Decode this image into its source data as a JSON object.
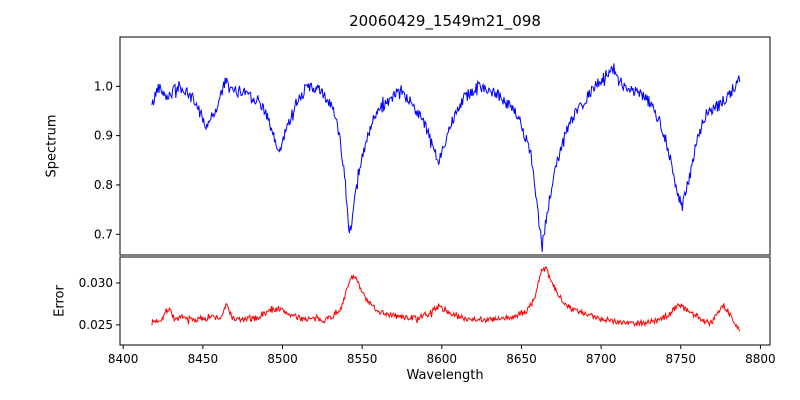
{
  "chart_data": [
    {
      "type": "line",
      "name": "spectrum-panel",
      "title": "20060429_1549m21_098",
      "ylabel": "Spectrum",
      "xlabel": "Wavelength",
      "color": "#0000ff",
      "xlim": [
        8398,
        8806
      ],
      "ylim": [
        0.658,
        1.1
      ],
      "xticks": [
        8400,
        8450,
        8500,
        8550,
        8600,
        8650,
        8700,
        8750,
        8800
      ],
      "yticks": [
        0.7,
        0.8,
        0.9,
        1.0
      ],
      "ytick_labels": [
        "0.7",
        "0.8",
        "0.9",
        "1.0"
      ],
      "grid": false,
      "legend": "none",
      "seed": 42,
      "noise_amp": 0.012,
      "sample_step": 0.5,
      "envelope": {
        "x": [
          8418,
          8422,
          8428,
          8435,
          8445,
          8452,
          8458,
          8464,
          8468,
          8478,
          8488,
          8494,
          8498,
          8503,
          8509,
          8516,
          8524,
          8531,
          8536,
          8539,
          8542,
          8545,
          8550,
          8557,
          8564,
          8572,
          8580,
          8587,
          8593,
          8598,
          8603,
          8610,
          8618,
          8626,
          8634,
          8642,
          8649,
          8656,
          8660,
          8663,
          8666,
          8671,
          8678,
          8686,
          8694,
          8702,
          8708,
          8714,
          8722,
          8730,
          8738,
          8744,
          8748,
          8751,
          8755,
          8761,
          8767,
          8773,
          8779,
          8784,
          8787
        ],
        "y": [
          0.96,
          1.0,
          0.98,
          1.0,
          0.97,
          0.92,
          0.95,
          1.01,
          0.99,
          0.99,
          0.96,
          0.9,
          0.865,
          0.92,
          0.97,
          1.0,
          0.99,
          0.96,
          0.9,
          0.82,
          0.7,
          0.76,
          0.86,
          0.93,
          0.965,
          0.985,
          0.97,
          0.94,
          0.89,
          0.845,
          0.9,
          0.96,
          0.99,
          1.0,
          0.985,
          0.965,
          0.93,
          0.86,
          0.75,
          0.675,
          0.74,
          0.83,
          0.91,
          0.955,
          0.99,
          1.02,
          1.035,
          1.0,
          0.99,
          0.97,
          0.92,
          0.85,
          0.78,
          0.755,
          0.81,
          0.9,
          0.95,
          0.96,
          0.975,
          1.0,
          1.02
        ]
      },
      "absorption_features_wavelengths": [
        8498,
        8542,
        8598,
        8662,
        8750
      ]
    },
    {
      "type": "line",
      "name": "error-panel",
      "ylabel": "Error",
      "xlabel": "Wavelength",
      "color": "#ff0000",
      "xlim": [
        8398,
        8806
      ],
      "ylim": [
        0.0226,
        0.0331
      ],
      "xticks": [
        8400,
        8450,
        8500,
        8550,
        8600,
        8650,
        8700,
        8750,
        8800
      ],
      "xtick_labels": [
        "8400",
        "8450",
        "8500",
        "8550",
        "8600",
        "8650",
        "8700",
        "8750",
        "8800"
      ],
      "yticks": [
        0.025,
        0.03
      ],
      "ytick_labels": [
        "0.025",
        "0.030"
      ],
      "grid": false,
      "legend": "none",
      "seed": 7,
      "noise_amp": 0.00035,
      "sample_step": 0.5,
      "envelope": {
        "x": [
          8418,
          8424,
          8429,
          8432,
          8438,
          8446,
          8454,
          8461,
          8465,
          8469,
          8476,
          8484,
          8491,
          8497,
          8503,
          8510,
          8518,
          8526,
          8533,
          8538,
          8542,
          8545,
          8549,
          8554,
          8561,
          8569,
          8577,
          8585,
          8592,
          8597,
          8601,
          8607,
          8614,
          8622,
          8630,
          8638,
          8646,
          8653,
          8658,
          8662,
          8665,
          8669,
          8674,
          8681,
          8689,
          8697,
          8705,
          8713,
          8721,
          8729,
          8737,
          8743,
          8748,
          8752,
          8757,
          8762,
          8766,
          8770,
          8774,
          8777,
          8781,
          8784,
          8787
        ],
        "y": [
          0.0253,
          0.0257,
          0.0271,
          0.0257,
          0.0258,
          0.0256,
          0.026,
          0.0258,
          0.0274,
          0.0257,
          0.0256,
          0.0258,
          0.0266,
          0.027,
          0.0264,
          0.0258,
          0.0257,
          0.0256,
          0.0262,
          0.0275,
          0.0303,
          0.031,
          0.0292,
          0.0276,
          0.0266,
          0.0261,
          0.0259,
          0.0258,
          0.0263,
          0.0272,
          0.0269,
          0.0262,
          0.0258,
          0.0257,
          0.0256,
          0.0257,
          0.026,
          0.0266,
          0.028,
          0.0312,
          0.0318,
          0.03,
          0.0283,
          0.027,
          0.0263,
          0.0259,
          0.0256,
          0.0253,
          0.0252,
          0.0253,
          0.0256,
          0.0263,
          0.0275,
          0.027,
          0.0264,
          0.0258,
          0.0253,
          0.0255,
          0.0268,
          0.0273,
          0.0262,
          0.025,
          0.0245
        ]
      }
    }
  ]
}
